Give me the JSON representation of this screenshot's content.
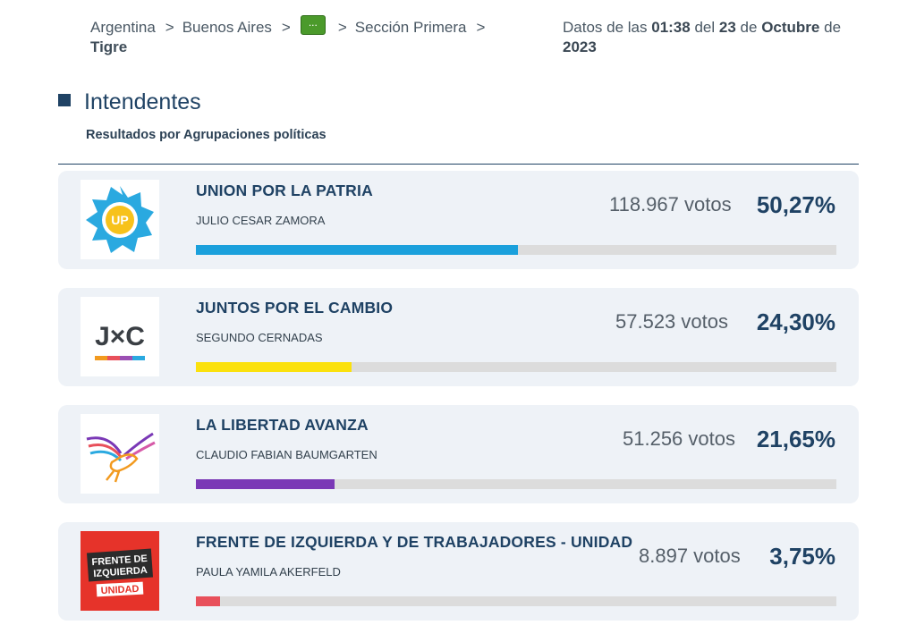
{
  "breadcrumb": {
    "items": [
      "Argentina",
      "Buenos Aires",
      "...",
      "Sección Primera"
    ],
    "separator": ">",
    "last": "Tigre"
  },
  "datestamp": {
    "prefix": "Datos de las",
    "time": "01:38",
    "mid": "del",
    "day": "23",
    "of1": "de",
    "month": "Octubre",
    "of2": "de",
    "year": "2023"
  },
  "section": {
    "title": "Intendentes",
    "subtitle": "Resultados por Agrupaciones políticas"
  },
  "results": [
    {
      "party": "UNION POR LA PATRIA",
      "candidate": "JULIO CESAR ZAMORA",
      "votes": "118.967 votos",
      "percent": "50,27%",
      "share": 0.5027,
      "color": "#1aa0dc",
      "logo": "union-por-la-patria-logo",
      "logo_text": "UP"
    },
    {
      "party": "JUNTOS POR EL CAMBIO",
      "candidate": "SEGUNDO CERNADAS",
      "votes": "57.523 votos",
      "percent": "24,30%",
      "share": 0.243,
      "color": "#fbe10d",
      "logo": "juntos-por-el-cambio-logo",
      "logo_text": "J×C"
    },
    {
      "party": "LA LIBERTAD AVANZA",
      "candidate": "CLAUDIO FABIAN BAUMGARTEN",
      "votes": "51.256 votos",
      "percent": "21,65%",
      "share": 0.2165,
      "color": "#7a38b6",
      "logo": "la-libertad-avanza-logo",
      "logo_text": ""
    },
    {
      "party": "FRENTE DE IZQUIERDA Y DE TRABAJADORES - UNIDAD",
      "candidate": "PAULA YAMILA AKERFELD",
      "votes": "8.897 votos",
      "percent": "3,75%",
      "share": 0.0375,
      "color": "#e8505b",
      "logo": "frente-de-izquierda-logo",
      "logo_text": "FRENTE DE IZQUIERDA UNIDAD"
    }
  ]
}
